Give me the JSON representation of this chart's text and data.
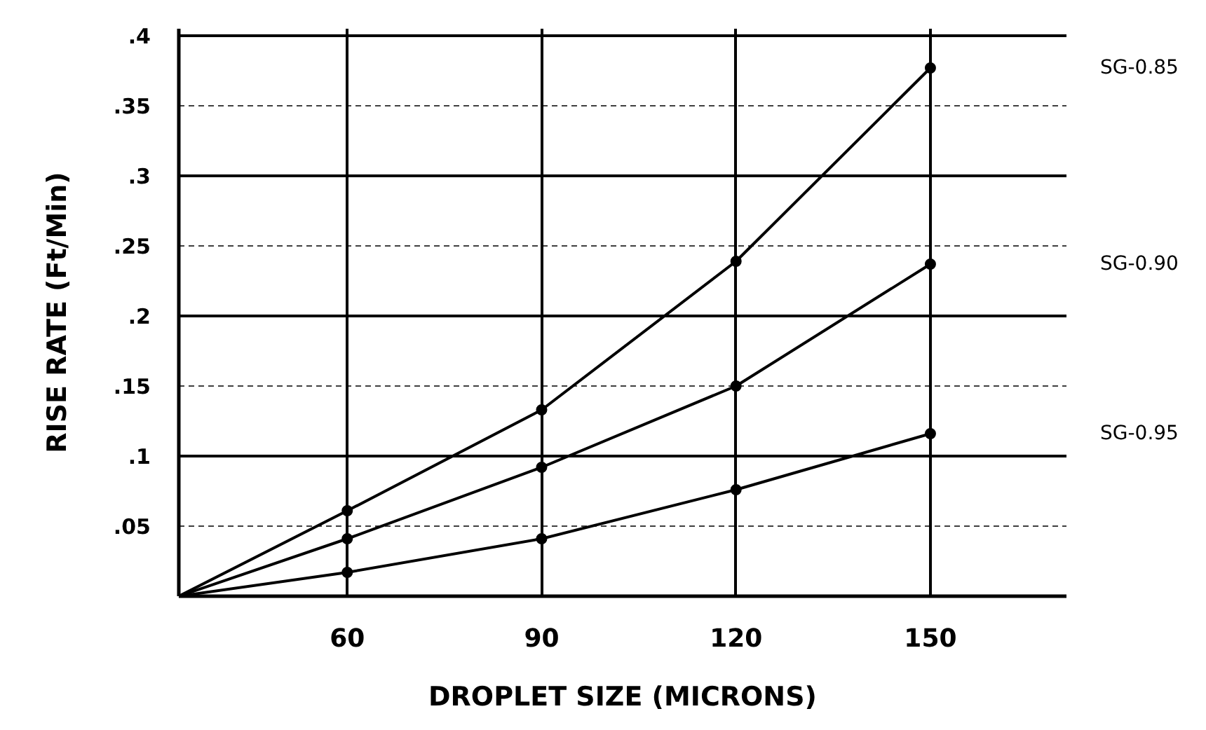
{
  "chart_data": {
    "type": "line",
    "xlabel": "DROPLET SIZE (MICRONS)",
    "ylabel": "RISE RATE (Ft/Min)",
    "x": [
      34,
      60,
      90,
      120,
      150
    ],
    "series": [
      {
        "name": "SG-0.85",
        "color": "#000000",
        "values": [
          0,
          0.061,
          0.133,
          0.239,
          0.377
        ]
      },
      {
        "name": "SG-0.90",
        "color": "#000000",
        "values": [
          0,
          0.041,
          0.092,
          0.15,
          0.237
        ]
      },
      {
        "name": "SG-0.95",
        "color": "#000000",
        "values": [
          0,
          0.017,
          0.041,
          0.076,
          0.116
        ]
      }
    ],
    "xlim": [
      34,
      171
    ],
    "ylim": [
      0,
      0.405
    ],
    "xticks": [
      60,
      90,
      120,
      150
    ],
    "yticks": [
      {
        "value": 0.05,
        "label": ".05"
      },
      {
        "value": 0.1,
        "label": ".1"
      },
      {
        "value": 0.15,
        "label": ".15"
      },
      {
        "value": 0.2,
        "label": ".2"
      },
      {
        "value": 0.25,
        "label": ".25"
      },
      {
        "value": 0.3,
        "label": ".3"
      },
      {
        "value": 0.35,
        "label": ".35"
      },
      {
        "value": 0.4,
        "label": ".4"
      }
    ],
    "grid": true,
    "marker": "circle",
    "line_style": "solid"
  }
}
